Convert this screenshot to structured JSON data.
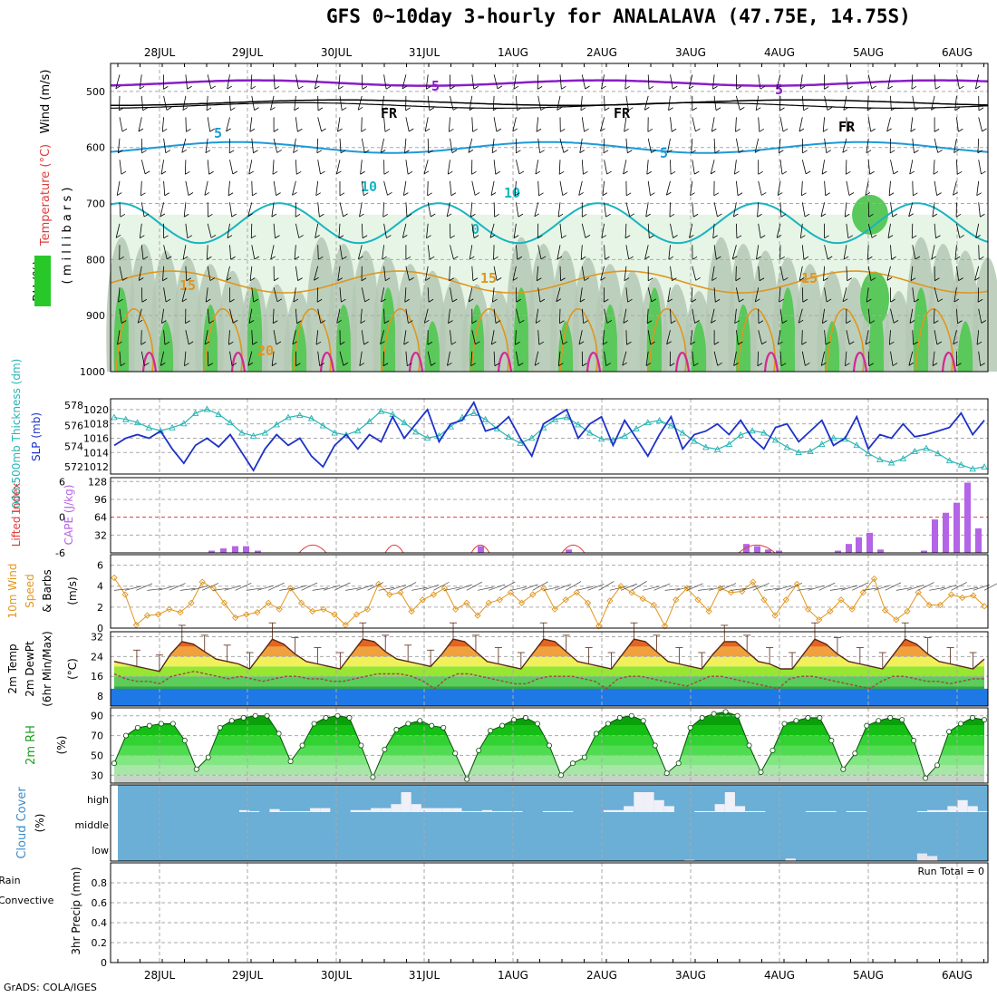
{
  "title": "GFS 0~10day 3-hourly for ANALALAVA (47.75E, 14.75S)",
  "credit": "GrADS: COLA/IGES",
  "dates": [
    "28JUL",
    "29JUL",
    "30JUL",
    "31JUL",
    "1AUG",
    "2AUG",
    "3AUG",
    "4AUG",
    "5AUG",
    "6AUG"
  ],
  "colors": {
    "wind_barb": "#000000",
    "iso_5_purple": "#8a1ec8",
    "iso_fr_black": "#000000",
    "iso_5_blue": "#1e9ad8",
    "iso_10_cyan": "#18b4c0",
    "iso_15_orange": "#e0961e",
    "iso_20_red": "#d22896",
    "rh_light": "#e6f5e6",
    "rh_mid": "#b4c8b4",
    "rh_green": "#5ac85a",
    "slp": "#1e32c8",
    "thickness": "#28b4b4",
    "cape": "#b464e6",
    "lifted_index": "#e03c3c",
    "wind10": "#e0961e",
    "cloud": "#6baed6",
    "precip_total": "#1ea01e",
    "precip_conv": "#e03c3c"
  },
  "panels": {
    "sounding": {
      "ylabel_wind": "Wind (m/s)",
      "ylabel_temp": "Temperature (°C)",
      "ylabel_rh": "RH (%)",
      "ylabel_mb": "( m i l l i b a r s )",
      "ticks": [
        "500",
        "600",
        "700",
        "800",
        "900",
        "1000"
      ],
      "iso_labels": [
        {
          "text": "5",
          "color": "iso_5_purple"
        },
        {
          "text": "5",
          "color": "iso_5_purple"
        },
        {
          "text": "FR",
          "color": "iso_fr_black"
        },
        {
          "text": "FR",
          "color": "iso_fr_black"
        },
        {
          "text": "FR",
          "color": "iso_fr_black"
        },
        {
          "text": "5",
          "color": "iso_5_blue"
        },
        {
          "text": "5",
          "color": "iso_5_blue"
        },
        {
          "text": "10",
          "color": "iso_10_cyan"
        },
        {
          "text": "10",
          "color": "iso_10_cyan"
        },
        {
          "text": "0",
          "color": "iso_10_cyan"
        },
        {
          "text": "15",
          "color": "iso_15_orange"
        },
        {
          "text": "15",
          "color": "iso_15_orange"
        },
        {
          "text": "15",
          "color": "iso_15_orange"
        },
        {
          "text": "20",
          "color": "iso_15_orange"
        }
      ]
    },
    "slp": {
      "ylabel_left": "1000-500mb Thickness (dm)",
      "ylabel_right": "SLP (mb)",
      "ticks_left": [
        "572",
        "574",
        "576",
        "578"
      ],
      "ticks_right": [
        "1012",
        "1014",
        "1016",
        "1018",
        "1020"
      ]
    },
    "cape": {
      "ylabel_left": "Lifted Index",
      "ylabel_right": "CAPE (J/kg)",
      "ticks_left": [
        "6",
        "0",
        "-6"
      ],
      "ticks_left_extra": [
        "6",
        "3"
      ],
      "ticks_right": [
        "32",
        "64",
        "96",
        "128"
      ]
    },
    "wind10": {
      "ylabel1": "10m Wind",
      "ylabel2": "Speed",
      "ylabel3": "& Barbs",
      "ylabel_units": "(m/s)",
      "ticks": [
        "0",
        "2",
        "4",
        "6"
      ]
    },
    "temp": {
      "ylabel1": "2m Temp",
      "ylabel2": "2m DewPt",
      "ylabel3": "(6hr Min/Max)",
      "ylabel_units": "(°C)",
      "ticks": [
        "8",
        "16",
        "24",
        "32"
      ]
    },
    "rh": {
      "ylabel": "2m RH",
      "ylabel_units": "(%)",
      "ticks": [
        "30",
        "50",
        "70",
        "90"
      ]
    },
    "cloud": {
      "ylabel": "Cloud Cover",
      "ylabel_units": "(%)",
      "levels": [
        "high",
        "middle",
        "low"
      ]
    },
    "precip": {
      "ylabel_total": "Total / Rain",
      "ylabel_conv": "Convective",
      "ylabel_units": "3hr Precip (mm)",
      "ticks": [
        "0",
        "0.2",
        "0.4",
        "0.6",
        "0.8"
      ],
      "run_total": "Run Total = 0"
    }
  },
  "chart_data": [
    {
      "type": "line",
      "title": "1000-500mb Thickness (dm) / SLP (mb)",
      "series": [
        {
          "name": "SLP (mb)",
          "values": [
            1015,
            1016,
            1016.5,
            1016,
            1017,
            1014.5,
            1012.5,
            1015,
            1016,
            1014.8,
            1016.5,
            1014,
            1011.5,
            1014.5,
            1016.5,
            1015,
            1016,
            1013.5,
            1012,
            1015,
            1016.5,
            1014.5,
            1016.5,
            1015.5,
            1019,
            1016,
            1018,
            1020,
            1015.5,
            1018,
            1018.5,
            1021,
            1017,
            1017.5,
            1019,
            1016,
            1013.5,
            1018,
            1019,
            1020,
            1016,
            1018,
            1019,
            1015,
            1018.5,
            1016,
            1013.5,
            1016.5,
            1019,
            1014.5,
            1016.5,
            1017,
            1018,
            1016.5,
            1018.5,
            1016,
            1014.5,
            1017.5,
            1018,
            1015.5,
            1017,
            1018.5,
            1015,
            1016,
            1019,
            1014.5,
            1016.5,
            1016,
            1018,
            1016.2,
            1016.5,
            1017,
            1017.5,
            1019.5,
            1016.5,
            1018.5
          ]
        },
        {
          "name": "1000-500mb Thickness (dm)",
          "values": [
            576.8,
            576.6,
            576.3,
            575.8,
            575.5,
            575.8,
            576.2,
            577.2,
            577.6,
            577.1,
            576.3,
            575.3,
            575,
            575.3,
            576.1,
            576.8,
            577,
            576.7,
            576,
            575.3,
            575.1,
            575.5,
            576.4,
            577.4,
            577.1,
            576.3,
            575.4,
            574.8,
            575,
            575.9,
            576.8,
            577.2,
            576.6,
            575.7,
            574.9,
            574.3,
            574.8,
            575.8,
            576.6,
            576.8,
            576.1,
            575.3,
            574.7,
            574.6,
            575,
            575.7,
            576.3,
            576.5,
            576,
            575.3,
            574.5,
            573.9,
            573.7,
            574.2,
            575.1,
            575.5,
            575.3,
            574.6,
            573.9,
            573.4,
            573.5,
            574.2,
            574.8,
            574.7,
            574.1,
            573.3,
            572.7,
            572.4,
            572.8,
            573.5,
            573.8,
            573.3,
            572.6,
            572.2,
            571.8,
            572
          ]
        }
      ]
    },
    {
      "type": "bar",
      "title": "CAPE (J/kg)",
      "series": [
        {
          "name": "CAPE (J/kg)",
          "values": [
            0,
            0,
            0,
            0,
            0,
            0,
            0,
            0,
            0,
            0,
            0,
            0,
            0,
            0,
            0,
            0,
            0,
            0,
            0,
            0,
            0,
            0,
            0,
            0,
            0,
            0,
            0,
            0,
            0,
            0,
            0,
            0,
            0,
            0,
            0,
            0,
            0,
            0,
            0,
            0,
            0,
            0,
            0,
            0,
            0,
            0,
            0,
            0,
            0,
            0,
            0,
            0,
            0,
            0,
            0,
            0,
            0,
            0,
            0,
            0,
            0,
            0,
            0,
            0,
            0,
            0,
            0,
            0,
            0,
            0,
            0,
            0,
            0,
            0,
            0,
            0,
            0,
            0,
            0,
            0,
            0,
            0,
            0,
            0
          ]
        },
        {
          "name": "CAPE",
          "x": [
            "28JUL+12h",
            "28JUL+15h",
            "28JUL+18h",
            "28JUL+21h",
            "29JUL+00h",
            "1AUG+03h",
            "1AUG+15h",
            "3AUG+18h",
            "3AUG+21h",
            "4AUG+00h",
            "4AUG+03h",
            "4AUG+15h",
            "4AUG+18h",
            "4AUG+21h",
            "5AUG+00h",
            "5AUG+03h",
            "5AUG+15h",
            "5AUG+18h",
            "5AUG+21h",
            "6AUG+00h",
            "6AUG+03h",
            "6AUG+06h"
          ],
          "values": [
            4,
            8,
            12,
            12,
            4,
            12,
            6,
            16,
            12,
            6,
            4,
            4,
            16,
            28,
            36,
            6,
            4,
            60,
            72,
            90,
            126,
            44
          ]
        }
      ]
    },
    {
      "type": "line",
      "title": "10m Wind Speed (m/s)",
      "series": [
        {
          "name": "10m Wind Speed",
          "values": [
            4.8,
            3.2,
            0.3,
            1.2,
            1.3,
            1.8,
            1.5,
            2.4,
            4.4,
            3.8,
            2.4,
            1.0,
            1.3,
            1.5,
            2.4,
            1.8,
            3.8,
            2.4,
            1.6,
            1.8,
            1.3,
            0.3,
            1.3,
            1.8,
            4.2,
            3.2,
            3.4,
            1.6,
            2.7,
            3.2,
            3.8,
            1.8,
            2.4,
            1.2,
            2.4,
            2.7,
            3.4,
            2.4,
            3.2,
            3.8,
            1.8,
            2.7,
            3.4,
            2.4,
            0.2,
            2.6,
            4.0,
            3.4,
            2.8,
            2.2,
            0.2,
            2.7,
            3.8,
            2.7,
            1.6,
            3.8,
            3.4,
            3.5,
            4.4,
            2.7,
            1.2,
            2.7,
            4.2,
            1.8,
            0.8,
            1.6,
            2.7,
            1.8,
            3.4,
            4.7,
            1.7,
            0.8,
            1.6,
            3.4,
            2.2,
            2.2,
            3.2,
            2.9,
            3.1,
            2.1
          ]
        }
      ]
    },
    {
      "type": "area",
      "title": "2m Temp / 2m DewPt (°C)",
      "series": [
        {
          "name": "2m Temp",
          "values": [
            22,
            21,
            20,
            19,
            18,
            25,
            30,
            29,
            26,
            23,
            22,
            21,
            19,
            25,
            31,
            29,
            25,
            22,
            21,
            20,
            19,
            25,
            31,
            30,
            26,
            23,
            22,
            21,
            20,
            25,
            31,
            30,
            26,
            22,
            21,
            20,
            19,
            25,
            31,
            30,
            26,
            22,
            21,
            20,
            19,
            25,
            31,
            30,
            26,
            22,
            21,
            20,
            19,
            25,
            30,
            30,
            26,
            22,
            21,
            19,
            19,
            25,
            31,
            29,
            25,
            22,
            21,
            20,
            19,
            25,
            31,
            29,
            25,
            22,
            21,
            20,
            19,
            23
          ]
        },
        {
          "name": "2m DewPt",
          "values": [
            17,
            15,
            14,
            14,
            13,
            16,
            17,
            18,
            17,
            16,
            15,
            16,
            15,
            14,
            15,
            16,
            16,
            15,
            15,
            14,
            14,
            15,
            16,
            17,
            17,
            17,
            16,
            14,
            11,
            15,
            17,
            17,
            16,
            15,
            14,
            13,
            13,
            15,
            16,
            16,
            16,
            15,
            14,
            11,
            15,
            16,
            16,
            15,
            14,
            13,
            12,
            14,
            16,
            16,
            15,
            14,
            13,
            12,
            11,
            15,
            16,
            16,
            15,
            14,
            13,
            12,
            11,
            14,
            16,
            16,
            15,
            14,
            14,
            13,
            14,
            15,
            15
          ]
        }
      ]
    },
    {
      "type": "area",
      "title": "2m RH (%)",
      "series": [
        {
          "name": "2m RH",
          "values": [
            42,
            70,
            78,
            80,
            82,
            82,
            65,
            36,
            48,
            78,
            85,
            88,
            90,
            90,
            72,
            44,
            60,
            82,
            88,
            90,
            88,
            60,
            28,
            56,
            76,
            82,
            85,
            80,
            78,
            52,
            26,
            55,
            75,
            80,
            86,
            88,
            82,
            60,
            30,
            42,
            48,
            72,
            82,
            88,
            90,
            85,
            60,
            32,
            42,
            78,
            88,
            92,
            94,
            90,
            60,
            33,
            55,
            82,
            85,
            88,
            88,
            65,
            36,
            52,
            80,
            85,
            88,
            86,
            65,
            27,
            40,
            74,
            82,
            88,
            86
          ]
        }
      ]
    },
    {
      "type": "bar",
      "title": "Cloud Cover (%)",
      "series": [
        {
          "name": "high",
          "values": [
            0,
            0,
            0,
            0,
            0,
            0,
            0,
            0,
            0,
            0,
            0,
            0,
            10,
            5,
            0,
            15,
            5,
            5,
            5,
            20,
            20,
            0,
            0,
            10,
            10,
            20,
            20,
            40,
            100,
            40,
            20,
            20,
            20,
            20,
            5,
            5,
            10,
            5,
            5,
            5,
            0,
            0,
            5,
            5,
            5,
            0,
            0,
            0,
            10,
            10,
            30,
            100,
            100,
            60,
            30,
            0,
            0,
            5,
            5,
            40,
            100,
            30,
            5,
            5,
            0,
            0,
            0,
            0,
            5,
            5,
            5,
            0,
            5,
            5,
            0,
            0,
            0,
            0,
            0,
            5,
            10,
            10,
            30,
            60,
            30,
            5
          ]
        },
        {
          "name": "low",
          "values": [
            0,
            0,
            0,
            0,
            0,
            0,
            0,
            0,
            0,
            0,
            0,
            0,
            0,
            0,
            0,
            0,
            0,
            0,
            0,
            0,
            0,
            0,
            0,
            0,
            0,
            0,
            0,
            0,
            0,
            0,
            0,
            0,
            0,
            0,
            0,
            0,
            0,
            0,
            0,
            0,
            0,
            0,
            0,
            0,
            0,
            0,
            0,
            0,
            0,
            0,
            0,
            0,
            0,
            0,
            0,
            0,
            10,
            0,
            0,
            0,
            0,
            0,
            0,
            0,
            0,
            0,
            20,
            0,
            0,
            0,
            0,
            0,
            0,
            0,
            0,
            0,
            0,
            0,
            0,
            60,
            40,
            0,
            0,
            0,
            0,
            0
          ]
        }
      ]
    },
    {
      "type": "bar",
      "title": "3hr Precip (mm)",
      "ylim": [
        0,
        1
      ],
      "series": [
        {
          "name": "Total / Rain",
          "values": [
            0,
            0,
            0,
            0,
            0,
            0,
            0,
            0,
            0,
            0
          ]
        },
        {
          "name": "Convective",
          "values": [
            0,
            0,
            0,
            0,
            0,
            0,
            0,
            0,
            0,
            0
          ]
        }
      ]
    }
  ]
}
